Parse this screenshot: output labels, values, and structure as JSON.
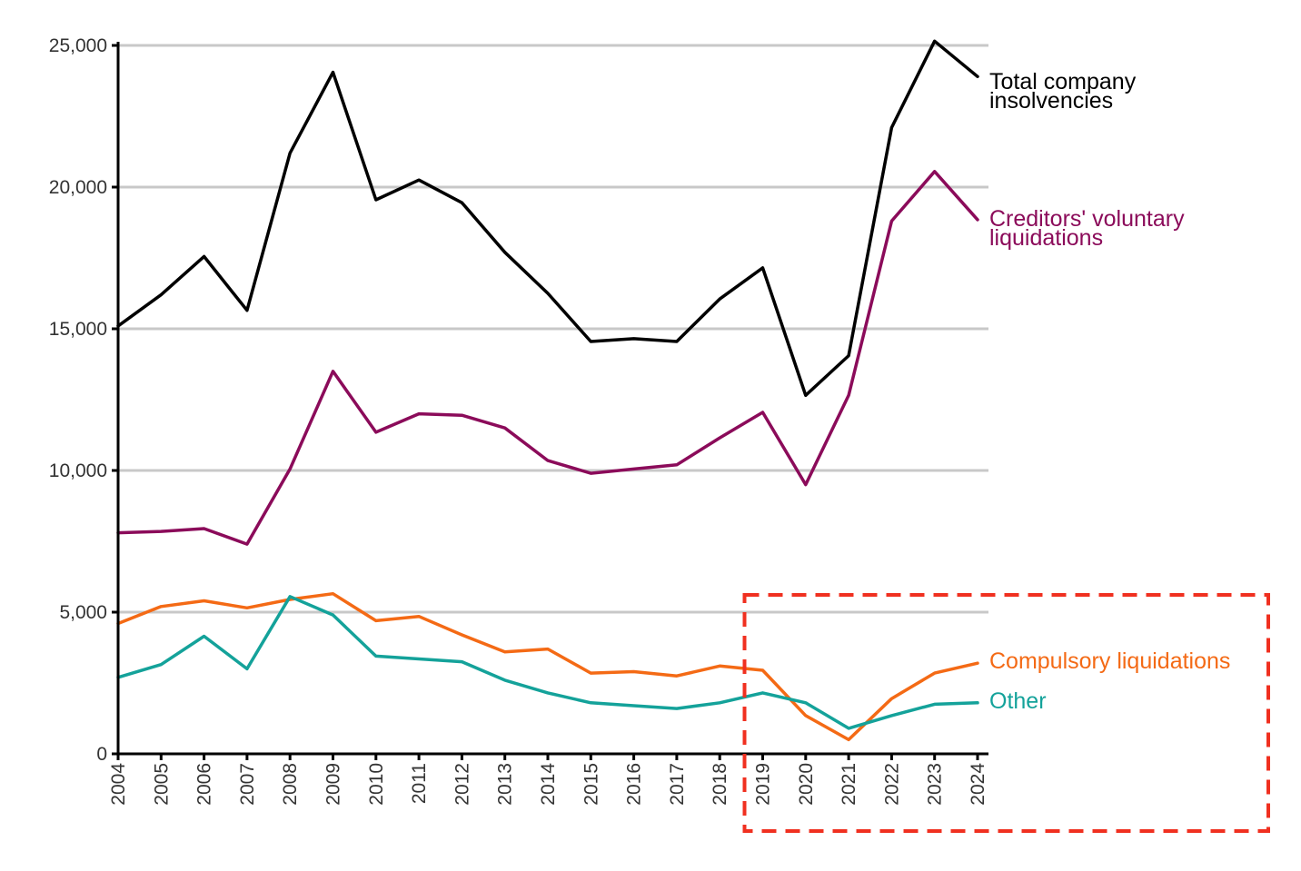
{
  "chart_data": {
    "type": "line",
    "title": "",
    "xlabel": "",
    "ylabel": "",
    "x": [
      "2004",
      "2005",
      "2006",
      "2007",
      "2008",
      "2009",
      "2010",
      "2011",
      "2012",
      "2013",
      "2014",
      "2015",
      "2016",
      "2017",
      "2018",
      "2019",
      "2020",
      "2021",
      "2022",
      "2023",
      "2024"
    ],
    "ylim": [
      0,
      25000
    ],
    "yticks": [
      0,
      5000,
      10000,
      15000,
      20000,
      25000
    ],
    "ytick_labels": [
      "0",
      "5,000",
      "10,000",
      "15,000",
      "20,000",
      "25,000"
    ],
    "grid": true,
    "legend": "direct labels at right end of each line",
    "series": [
      {
        "name": "Total company insolvencies",
        "label_lines": [
          "Total company",
          "insolvencies"
        ],
        "color": "#000000",
        "values": [
          15100,
          16200,
          17550,
          15650,
          21200,
          24050,
          19550,
          20250,
          19450,
          17700,
          16250,
          14550,
          14650,
          14550,
          16050,
          17150,
          12650,
          14050,
          22100,
          25150,
          23900
        ]
      },
      {
        "name": "Creditors' voluntary liquidations",
        "label_lines": [
          "Creditors' voluntary",
          "liquidations"
        ],
        "color": "#8b0b5a",
        "values": [
          7800,
          7850,
          7950,
          7400,
          10050,
          13500,
          11350,
          12000,
          11950,
          11500,
          10350,
          9900,
          10050,
          10200,
          11150,
          12050,
          9500,
          12650,
          18800,
          20550,
          18850
        ]
      },
      {
        "name": "Compulsory liquidations",
        "label_lines": [
          "Compulsory liquidations"
        ],
        "color": "#f46a15",
        "values": [
          4600,
          5200,
          5400,
          5150,
          5450,
          5650,
          4700,
          4850,
          4200,
          3600,
          3700,
          2850,
          2900,
          2750,
          3100,
          2950,
          1350,
          500,
          1950,
          2850,
          3200
        ]
      },
      {
        "name": "Other",
        "label_lines": [
          "Other"
        ],
        "color": "#14a29a",
        "values": [
          2700,
          3150,
          4150,
          3000,
          5550,
          4900,
          3450,
          3350,
          3250,
          2600,
          2150,
          1800,
          1700,
          1600,
          1800,
          2150,
          1800,
          900,
          1350,
          1750,
          1800
        ]
      }
    ],
    "annotations": [
      {
        "type": "dashed-rectangle",
        "color": "#f03020",
        "covers_x_from": "2019",
        "covers_x_to": "2024"
      }
    ]
  }
}
